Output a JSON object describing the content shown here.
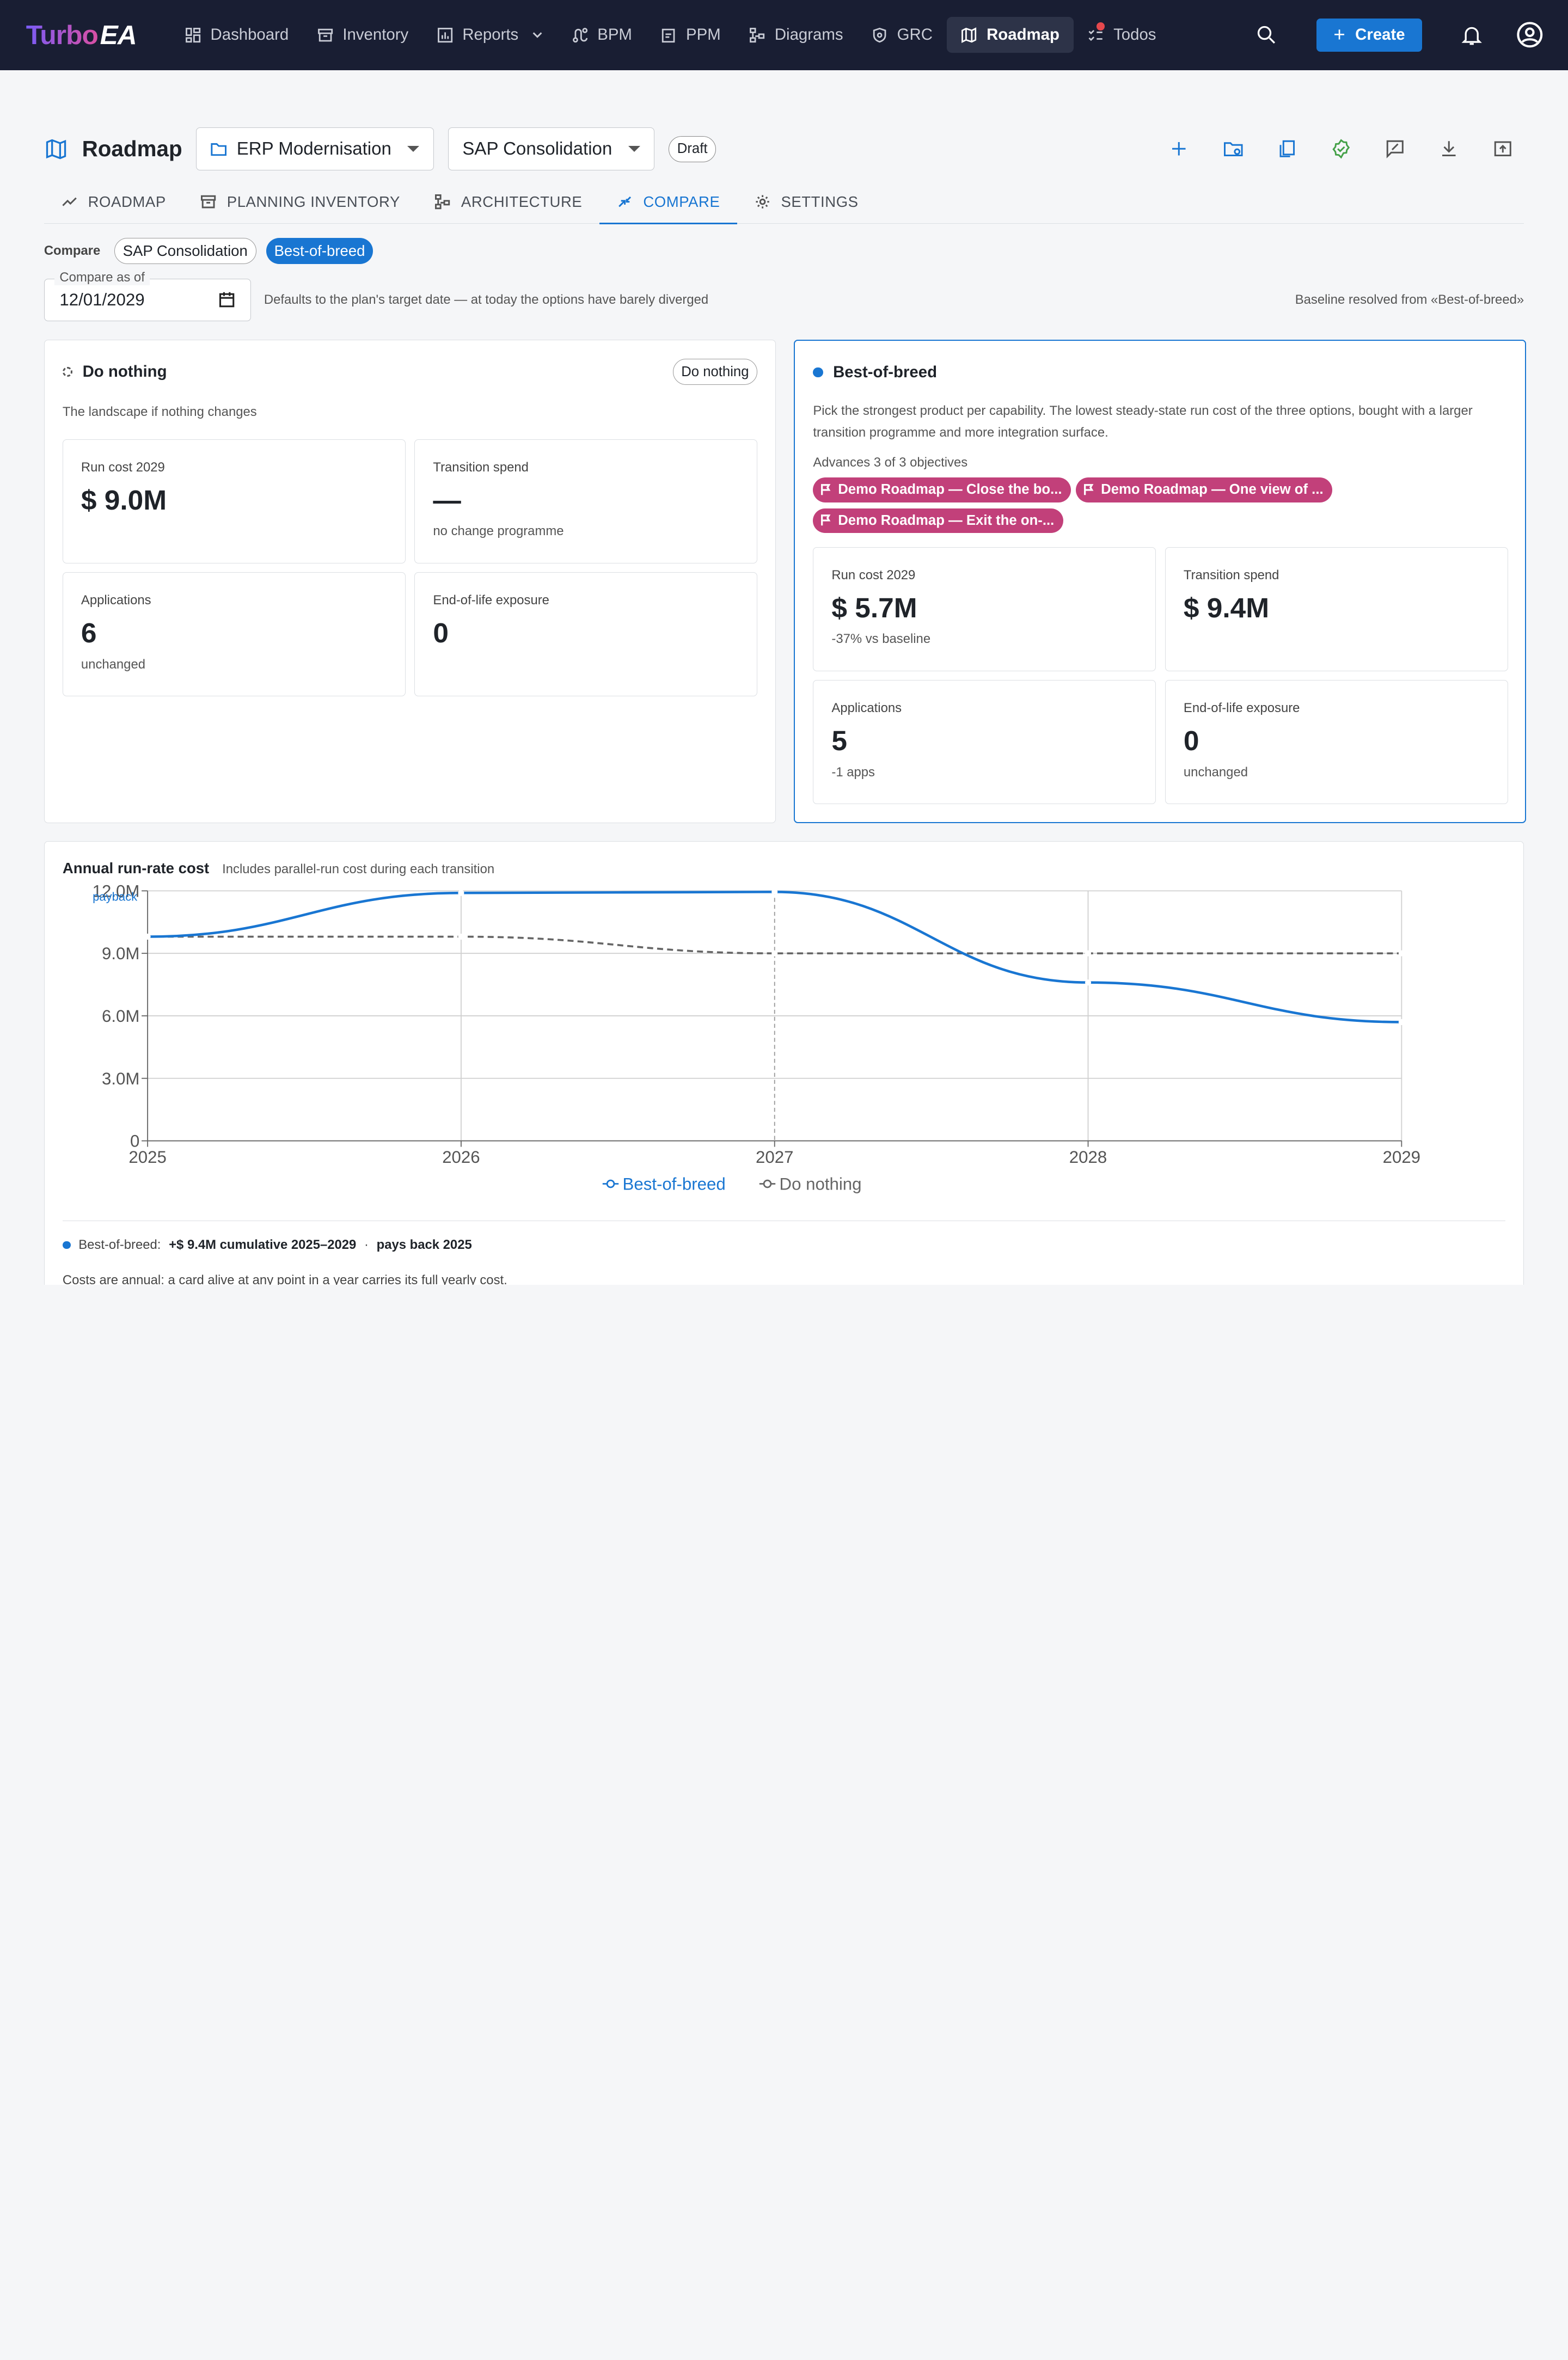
{
  "nav": {
    "logo_a": "Turbo",
    "logo_b": "EA",
    "items": [
      {
        "label": "Dashboard",
        "icon": "dashboard-icon"
      },
      {
        "label": "Inventory",
        "icon": "archive-icon"
      },
      {
        "label": "Reports",
        "icon": "bar-chart-icon"
      },
      {
        "label": "BPM",
        "icon": "route-icon"
      },
      {
        "label": "PPM",
        "icon": "clipboard-icon"
      },
      {
        "label": "Diagrams",
        "icon": "diagram-icon"
      },
      {
        "label": "GRC",
        "icon": "shield-icon"
      },
      {
        "label": "Roadmap",
        "icon": "map-icon"
      },
      {
        "label": "Todos",
        "icon": "checklist-icon"
      }
    ],
    "active": "Roadmap",
    "create_label": "Create"
  },
  "header": {
    "title": "Roadmap",
    "plan_select": "ERP Modernisation",
    "option_select": "SAP Consolidation",
    "status_chip": "Draft"
  },
  "tabs": [
    "ROADMAP",
    "PLANNING INVENTORY",
    "ARCHITECTURE",
    "COMPARE",
    "SETTINGS"
  ],
  "active_tab": "COMPARE",
  "compare": {
    "label": "Compare",
    "options": [
      "SAP Consolidation",
      "Best-of-breed"
    ],
    "selected": "Best-of-breed",
    "date_label": "Compare as of",
    "date_value": "12/01/2029",
    "date_help": "Defaults to the plan's target date — at today the options have barely diverged",
    "baseline_note": "Baseline resolved from «Best-of-breed»"
  },
  "left_card": {
    "title": "Do nothing",
    "tag": "Do nothing",
    "desc": "The landscape if nothing changes",
    "metrics": [
      {
        "label": "Run cost 2029",
        "value": "$ 9.0M",
        "sub": ""
      },
      {
        "label": "Transition spend",
        "value": "—",
        "sub": "no change programme"
      },
      {
        "label": "Applications",
        "value": "6",
        "sub": "unchanged"
      },
      {
        "label": "End-of-life exposure",
        "value": "0",
        "sub": ""
      }
    ]
  },
  "right_card": {
    "title": "Best-of-breed",
    "desc": "Pick the strongest product per capability. The lowest steady-state run cost of the three options, bought with a larger transition programme and more integration surface.",
    "objectives_label": "Advances 3 of 3 objectives",
    "objectives": [
      "Demo Roadmap — Close the bo...",
      "Demo Roadmap — One view of ...",
      "Demo Roadmap — Exit the on-..."
    ],
    "metrics": [
      {
        "label": "Run cost 2029",
        "value": "$ 5.7M",
        "sub": "-37% vs baseline"
      },
      {
        "label": "Transition spend",
        "value": "$ 9.4M",
        "sub": ""
      },
      {
        "label": "Applications",
        "value": "5",
        "sub": "-1 apps"
      },
      {
        "label": "End-of-life exposure",
        "value": "0",
        "sub": "unchanged"
      }
    ]
  },
  "chart": {
    "title": "Annual run-rate cost",
    "subtitle": "Includes parallel-run cost during each transition",
    "payback_label": "payback",
    "foot_series": "Best-of-breed:",
    "foot_value": "+$ 9.4M cumulative 2025–2029",
    "foot_sep": "·",
    "foot_payback": "pays back 2025",
    "note": "Costs are annual: a card alive at any point in a year carries its full yearly cost."
  },
  "chart_data": {
    "type": "line",
    "x": [
      "2025",
      "2026",
      "2027",
      "2028",
      "2029"
    ],
    "yticks": [
      "0",
      "3.0M",
      "6.0M",
      "9.0M",
      "12.0M"
    ],
    "ylim": [
      0,
      12
    ],
    "grid": true,
    "legend": "bottom",
    "series": [
      {
        "name": "Best-of-breed",
        "values": [
          9.8,
          11.9,
          11.95,
          7.6,
          5.7
        ],
        "color": "#1976d2",
        "style": "solid"
      },
      {
        "name": "Do nothing",
        "values": [
          9.8,
          9.8,
          9.0,
          9.0,
          9.0
        ],
        "color": "#666666",
        "style": "dashed"
      }
    ]
  }
}
